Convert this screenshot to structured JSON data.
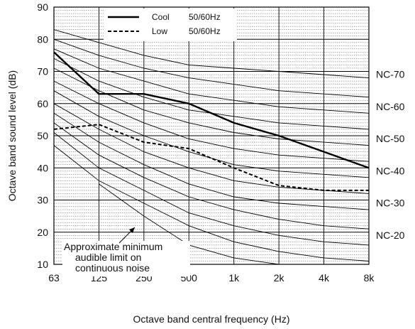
{
  "chart_data": {
    "type": "line",
    "xlabel": "Octave band central frequency (Hz)",
    "ylabel": "Octave band sound level (dB)",
    "x_tick_labels": [
      "63",
      "125",
      "250",
      "500",
      "1k",
      "2k",
      "4k",
      "8k"
    ],
    "x_values_hz": [
      63,
      125,
      250,
      500,
      1000,
      2000,
      4000,
      8000
    ],
    "y_ticks": [
      10,
      20,
      30,
      40,
      50,
      60,
      70,
      80,
      90
    ],
    "ylim": [
      10,
      90
    ],
    "grid": true,
    "minor_y_grid_step": 1,
    "legend_position": "top-center",
    "series": [
      {
        "name": "Cool",
        "condition": "50/60Hz",
        "style": "solid",
        "values": [
          76,
          63,
          63,
          60,
          54,
          50,
          45,
          40
        ]
      },
      {
        "name": "Low",
        "condition": "50/60Hz",
        "style": "dashed",
        "values": [
          52,
          53.5,
          48,
          46,
          40,
          34.5,
          33,
          33
        ]
      }
    ],
    "nc_curves": [
      {
        "name": "NC-70",
        "values": [
          83,
          79,
          75,
          72,
          71,
          70,
          69,
          68
        ]
      },
      {
        "name": "NC-65",
        "values": [
          80,
          75,
          71,
          68,
          66,
          64,
          63,
          62
        ]
      },
      {
        "name": "NC-60",
        "values": [
          77,
          71,
          67,
          63,
          61,
          59,
          58,
          57
        ]
      },
      {
        "name": "NC-55",
        "values": [
          74,
          67,
          62,
          58,
          56,
          54,
          53,
          52
        ]
      },
      {
        "name": "NC-50",
        "values": [
          71,
          64,
          58,
          54,
          51,
          49,
          48,
          47
        ]
      },
      {
        "name": "NC-45",
        "values": [
          67,
          60,
          54,
          49,
          46,
          44,
          43,
          42
        ]
      },
      {
        "name": "NC-40",
        "values": [
          64,
          56,
          50,
          45,
          41,
          39,
          38,
          37
        ]
      },
      {
        "name": "NC-35",
        "values": [
          60,
          52,
          45,
          40,
          36,
          34,
          33,
          32
        ]
      },
      {
        "name": "NC-30",
        "values": [
          57,
          48,
          41,
          35,
          31,
          29,
          28,
          27
        ]
      },
      {
        "name": "NC-25",
        "values": [
          54,
          44,
          37,
          31,
          27,
          24,
          22,
          21
        ]
      },
      {
        "name": "NC-20",
        "values": [
          51,
          40,
          33,
          26,
          22,
          19,
          17,
          16
        ]
      },
      {
        "name": "NC-15",
        "values": [
          47,
          36,
          29,
          22,
          17,
          14,
          12,
          11
        ]
      }
    ],
    "audible_limit": {
      "values": [
        null,
        35,
        25,
        16,
        12,
        10,
        null,
        null
      ]
    },
    "nc_labels": [
      {
        "text": "NC-70",
        "level": 70
      },
      {
        "text": "NC-60",
        "level": 60
      },
      {
        "text": "NC-50",
        "level": 50
      },
      {
        "text": "NC-40",
        "level": 40
      },
      {
        "text": "NC-30",
        "level": 30
      },
      {
        "text": "NC-20",
        "level": 20
      }
    ],
    "annotation": {
      "lines": [
        "Approximate minimum",
        "audible limit on",
        "continuous noise"
      ]
    }
  }
}
